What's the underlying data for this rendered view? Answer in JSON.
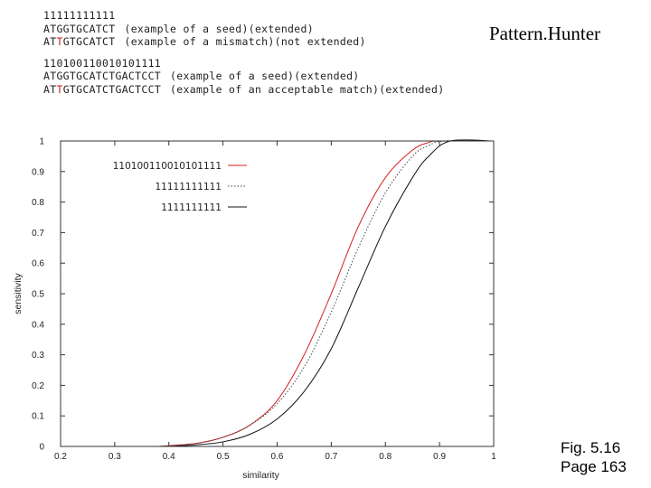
{
  "title": "Pattern.Hunter",
  "seed_examples": [
    {
      "pre": "11111111111",
      "mm": "",
      "post": "",
      "note": ""
    },
    {
      "pre": "ATGGTGCATCT",
      "mm": "",
      "post": "",
      "note": "(example of a seed)(extended)"
    },
    {
      "pre": "AT",
      "mm": "T",
      "post": "GTGCATCT",
      "note": "(example of a mismatch)(not extended)"
    },
    {
      "gap": true
    },
    {
      "pre": "110100110010101111",
      "mm": "",
      "post": "",
      "note": ""
    },
    {
      "pre": "ATGGTGCATCTGACTCCT",
      "mm": "",
      "post": "",
      "note": "(example of a seed)(extended)"
    },
    {
      "pre": "AT",
      "mm": "T",
      "post": "GTGCATCTGACTCCT",
      "note": "(example of an acceptable match)(extended)"
    }
  ],
  "caption": [
    "Fig. 5.16",
    "Page 163"
  ],
  "chart_data": {
    "type": "line",
    "xlabel": "similarity",
    "ylabel": "sensitivity",
    "xlim": [
      0.2,
      1
    ],
    "ylim": [
      0,
      1
    ],
    "x_ticks": [
      "0.2",
      "0.3",
      "0.4",
      "0.5",
      "0.6",
      "0.7",
      "0.8",
      "0.9",
      "1"
    ],
    "y_ticks": [
      "0",
      "0.1",
      "0.2",
      "0.3",
      "0.4",
      "0.5",
      "0.6",
      "0.7",
      "0.8",
      "0.9",
      "1"
    ],
    "legend_position": "top-left",
    "series": [
      {
        "name": "110100110010101111",
        "color": "#d42020",
        "dash": "solid",
        "x": [
          0.38,
          0.45,
          0.5,
          0.55,
          0.6,
          0.65,
          0.7,
          0.75,
          0.8,
          0.85,
          0.88,
          0.9,
          1.0
        ],
        "y": [
          0.0,
          0.01,
          0.03,
          0.07,
          0.15,
          0.3,
          0.5,
          0.72,
          0.88,
          0.97,
          0.995,
          1.0,
          1.0
        ]
      },
      {
        "name": "11111111111",
        "color": "#444444",
        "dash": "dotted",
        "x": [
          0.38,
          0.45,
          0.5,
          0.55,
          0.6,
          0.65,
          0.7,
          0.75,
          0.8,
          0.85,
          0.88,
          0.91,
          1.0
        ],
        "y": [
          0.0,
          0.01,
          0.03,
          0.07,
          0.14,
          0.26,
          0.44,
          0.65,
          0.83,
          0.95,
          0.985,
          1.0,
          1.0
        ]
      },
      {
        "name": "1111111111",
        "color": "#111111",
        "dash": "solid",
        "x": [
          0.4,
          0.45,
          0.5,
          0.55,
          0.6,
          0.65,
          0.7,
          0.75,
          0.8,
          0.85,
          0.88,
          0.92,
          1.0
        ],
        "y": [
          0.0,
          0.005,
          0.015,
          0.04,
          0.09,
          0.18,
          0.32,
          0.52,
          0.72,
          0.88,
          0.95,
          1.0,
          1.0
        ]
      }
    ]
  }
}
